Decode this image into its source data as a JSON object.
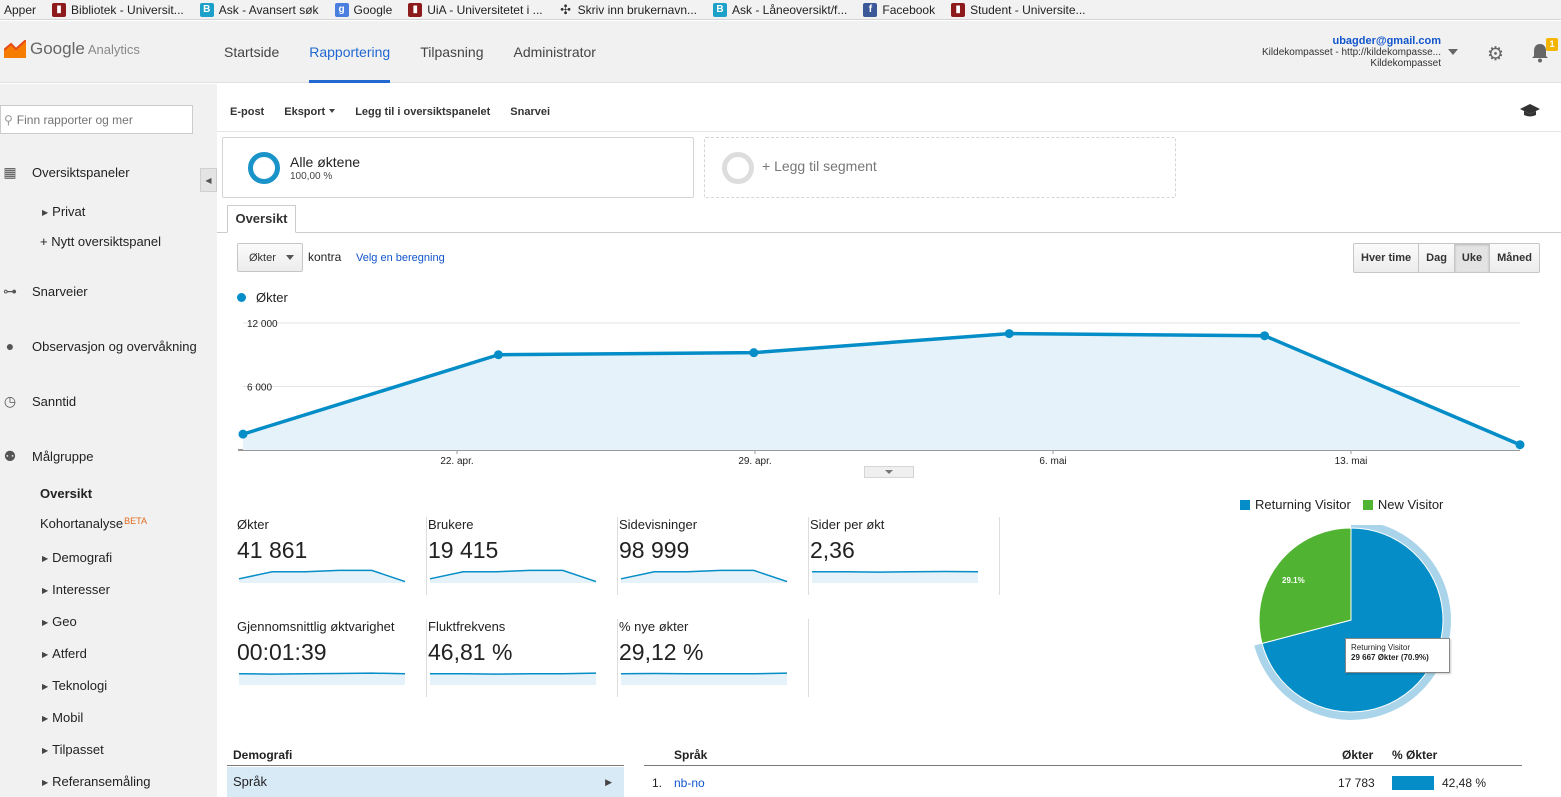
{
  "bookmarks": [
    {
      "label": "Apper",
      "icon": "apps-icon"
    },
    {
      "label": "Bibliotek - Universit...",
      "icon": "uia-icon",
      "color": "#8e1b1b"
    },
    {
      "label": "Ask - Avansert søk",
      "icon": "b-icon",
      "color": "#1ea1c9"
    },
    {
      "label": "Google",
      "icon": "google-icon",
      "color": "#4a7fe0"
    },
    {
      "label": "UiA - Universitetet i ...",
      "icon": "uia-icon",
      "color": "#8e1b1b"
    },
    {
      "label": "Skriv inn brukernavn...",
      "icon": "cross-icon",
      "color": "#333333"
    },
    {
      "label": "Ask - Låneoversikt/f...",
      "icon": "b-icon",
      "color": "#1ea1c9"
    },
    {
      "label": "Facebook",
      "icon": "facebook-icon",
      "color": "#3b5998"
    },
    {
      "label": "Student - Universite...",
      "icon": "uia-icon",
      "color": "#8e1b1b"
    }
  ],
  "header": {
    "logo_google": "Google",
    "logo_analytics": "Analytics",
    "nav": [
      "Startside",
      "Rapportering",
      "Tilpasning",
      "Administrator"
    ],
    "active_nav": "Rapportering",
    "account_email": "ubagder@gmail.com",
    "account_property": "Kildekompasset - http://kildekompasse...",
    "account_view": "Kildekompasset",
    "notification_count": "1"
  },
  "sidebar": {
    "search_placeholder": "Finn rapporter og mer",
    "sections": [
      {
        "label": "Oversiktspaneler",
        "icon": "grid-icon"
      },
      {
        "label": "Snarveier",
        "icon": "shortcut-icon"
      },
      {
        "label": "Observasjon og overvåkning",
        "icon": "bulb-icon"
      },
      {
        "label": "Sanntid",
        "icon": "clock-icon"
      },
      {
        "label": "Målgruppe",
        "icon": "people-icon"
      }
    ],
    "dashboard_items": [
      "Privat",
      "+ Nytt oversiktspanel"
    ],
    "audience_items": [
      "Oversikt",
      "Kohortanalyse",
      "Demografi",
      "Interesser",
      "Geo",
      "Atferd",
      "Teknologi",
      "Mobil",
      "Tilpasset",
      "Referansemåling"
    ],
    "beta_label": "BETA"
  },
  "toolbar": {
    "email": "E-post",
    "export": "Eksport",
    "add_dashboard": "Legg til i oversiktspanelet",
    "shortcut": "Snarvei"
  },
  "segments": {
    "all_label": "Alle øktene",
    "all_pct": "100,00 %",
    "add_label": "+ Legg til segment"
  },
  "tab": "Oversikt",
  "controls": {
    "metric": "Økter",
    "versus": "kontra",
    "choose_metric": "Velg en beregning",
    "granularity": [
      "Hver time",
      "Dag",
      "Uke",
      "Måned"
    ],
    "active_granularity": "Uke"
  },
  "chart_data": {
    "type": "area",
    "series": [
      {
        "name": "Økter",
        "values": [
          1500,
          9000,
          9200,
          11000,
          10800,
          500
        ]
      }
    ],
    "x_ticks": [
      "22. apr.",
      "29. apr.",
      "6. mai",
      "13. mai"
    ],
    "y_ticks": [
      "12 000",
      "6 000"
    ],
    "ylim": [
      0,
      12000
    ],
    "color": "#058dc7",
    "grid": true
  },
  "scorecards": [
    {
      "label": "Økter",
      "value": "41 861",
      "spark": [
        0.3,
        0.8,
        0.8,
        0.9,
        0.9,
        0.1
      ]
    },
    {
      "label": "Brukere",
      "value": "19 415",
      "spark": [
        0.3,
        0.8,
        0.8,
        0.9,
        0.9,
        0.1
      ]
    },
    {
      "label": "Sidevisninger",
      "value": "98 999",
      "spark": [
        0.3,
        0.8,
        0.8,
        0.9,
        0.9,
        0.1
      ]
    },
    {
      "label": "Sider per økt",
      "value": "2,36",
      "spark": [
        0.8,
        0.8,
        0.78,
        0.8,
        0.82,
        0.8
      ]
    },
    {
      "label": "Gjennomsnittlig øktvarighet",
      "value": "00:01:39",
      "spark": [
        0.8,
        0.78,
        0.8,
        0.82,
        0.85,
        0.8
      ]
    },
    {
      "label": "Fluktfrekvens",
      "value": "46,81 %",
      "spark": [
        0.8,
        0.8,
        0.78,
        0.8,
        0.8,
        0.85
      ]
    },
    {
      "label": "% nye økter",
      "value": "29,12 %",
      "spark": [
        0.8,
        0.82,
        0.8,
        0.8,
        0.8,
        0.85
      ]
    }
  ],
  "pie": {
    "legend": [
      {
        "label": "Returning Visitor",
        "color": "#058dc7"
      },
      {
        "label": "New Visitor",
        "color": "#50b432"
      }
    ],
    "values": [
      70.9,
      29.1
    ],
    "new_label": "29.1%",
    "tooltip_title": "Returning Visitor",
    "tooltip_value": "29 667 Økter (70.9%)"
  },
  "table": {
    "demo_header": "Demografi",
    "demo_row": "Språk",
    "lang_header": "Språk",
    "sessions_header": "Økter",
    "pct_header": "% Økter",
    "rows": [
      {
        "rank": "1.",
        "lang": "nb-no",
        "sessions": "17 783",
        "pct": "42,48 %",
        "share": 0.4248
      }
    ]
  }
}
